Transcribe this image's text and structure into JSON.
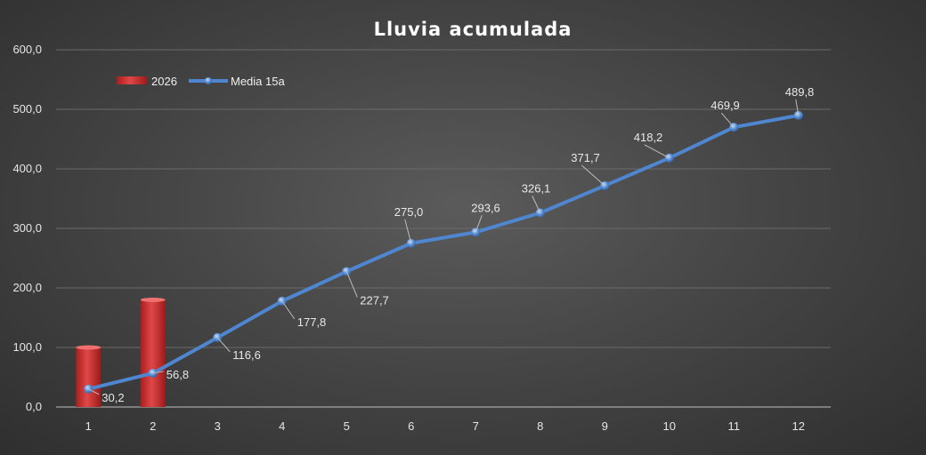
{
  "chart_data": {
    "type": "bar",
    "title": "Lluvia  acumulada",
    "categories": [
      "1",
      "2",
      "3",
      "4",
      "5",
      "6",
      "7",
      "8",
      "9",
      "10",
      "11",
      "12"
    ],
    "series": [
      {
        "name": "2026",
        "type": "bar",
        "color": "#d63a3a",
        "values": [
          100,
          180,
          null,
          null,
          null,
          null,
          null,
          null,
          null,
          null,
          null,
          null
        ]
      },
      {
        "name": "Media 15a",
        "type": "line",
        "color": "#4f86d0",
        "values": [
          30.2,
          56.8,
          116.6,
          177.8,
          227.7,
          275.0,
          293.6,
          326.1,
          371.7,
          418.2,
          469.9,
          489.8
        ],
        "labels": [
          "30,2",
          "56,8",
          "116,6",
          "177,8",
          "227,7",
          "275,0",
          "293,6",
          "326,1",
          "371,7",
          "418,2",
          "469,9",
          "489,8"
        ]
      }
    ],
    "y_ticks": [
      "0,0",
      "100,0",
      "200,0",
      "300,0",
      "400,0",
      "500,0",
      "600,0"
    ],
    "ylim": [
      0,
      600
    ],
    "grid": true,
    "legend_position": "top-left"
  }
}
